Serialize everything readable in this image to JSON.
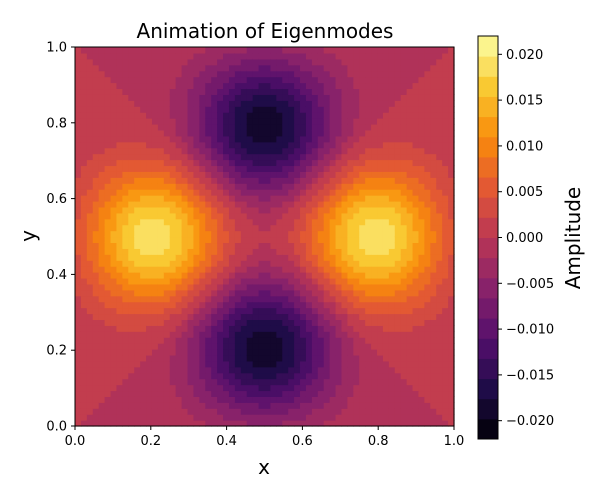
{
  "chart_data": {
    "type": "heatmap",
    "title": "Animation of Eigenmodes",
    "xlabel": "x",
    "ylabel": "y",
    "xlim": [
      0.0,
      1.0
    ],
    "ylim": [
      0.0,
      1.0
    ],
    "x_ticks": [
      "0.0",
      "0.2",
      "0.4",
      "0.6",
      "0.8",
      "1.0"
    ],
    "y_ticks": [
      "0.0",
      "0.2",
      "0.4",
      "0.6",
      "0.8",
      "1.0"
    ],
    "colormap": "inferno",
    "grid_resolution": 64,
    "features": [
      {
        "x": 0.2,
        "y": 0.5,
        "value": 0.021
      },
      {
        "x": 0.8,
        "y": 0.5,
        "value": 0.021
      },
      {
        "x": 0.5,
        "y": 0.2,
        "value": -0.021
      },
      {
        "x": 0.5,
        "y": 0.8,
        "value": -0.021
      },
      {
        "x": 0.5,
        "y": 0.5,
        "value": 0.0
      }
    ],
    "colorbar": {
      "label": "Amplitude",
      "range": [
        -0.022,
        0.022
      ],
      "levels": 20,
      "ticks": [
        "−0.020",
        "−0.015",
        "−0.010",
        "−0.005",
        "0.000",
        "0.005",
        "0.010",
        "0.015",
        "0.020"
      ],
      "tick_values": [
        -0.02,
        -0.015,
        -0.01,
        -0.005,
        0.0,
        0.005,
        0.01,
        0.015,
        0.02
      ]
    }
  }
}
